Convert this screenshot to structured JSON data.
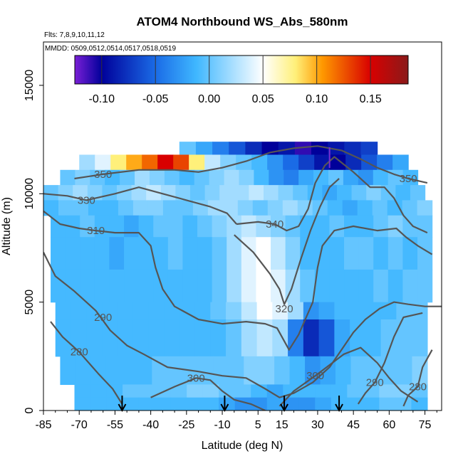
{
  "chart_data": {
    "type": "heatmap",
    "title": "ATOM4 Northbound WS_Abs_580nm",
    "subtitle_lines": [
      "Flts: 7,8,9,10,11,12",
      "MMDD: 0509,0512,0514,0517,0518,0519"
    ],
    "xlabel": "Latitude (deg N)",
    "ylabel": "Altitude (m)",
    "xlim": [
      -85,
      82
    ],
    "ylim": [
      0,
      17000
    ],
    "x_ticks": [
      -85,
      -70,
      -55,
      -40,
      -25,
      -10,
      5,
      15,
      30,
      45,
      60,
      75
    ],
    "y_ticks": [
      0,
      5000,
      10000,
      15000
    ],
    "colorbar": {
      "range": [
        -0.125,
        0.185
      ],
      "ticks": [
        -0.1,
        -0.05,
        0.0,
        0.05,
        0.1,
        0.15
      ],
      "tick_labels": [
        "-0.10",
        "-0.05",
        "0.00",
        "0.05",
        "0.10",
        "0.15"
      ],
      "palette": [
        "#7a1fd6",
        "#00009a",
        "#1a6be6",
        "#3fb7ff",
        "#ffffff",
        "#fff07a",
        "#ff9900",
        "#d80000",
        "#8a1a1a"
      ]
    },
    "contour_labels": [
      {
        "label": "350",
        "x": -60,
        "y": 10900
      },
      {
        "label": "330",
        "x": -67,
        "y": 9700
      },
      {
        "label": "310",
        "x": -63,
        "y": 8300
      },
      {
        "label": "340",
        "x": 12,
        "y": 8600
      },
      {
        "label": "320",
        "x": 16,
        "y": 4700
      },
      {
        "label": "290",
        "x": -60,
        "y": 4300
      },
      {
        "label": "280",
        "x": -70,
        "y": 2700
      },
      {
        "label": "300",
        "x": -21,
        "y": 1500
      },
      {
        "label": "300",
        "x": 29,
        "y": 1600
      },
      {
        "label": "290",
        "x": 54,
        "y": 1300
      },
      {
        "label": "280",
        "x": 72,
        "y": 1100
      },
      {
        "label": "350",
        "x": 68,
        "y": 10700
      }
    ],
    "profile_markers_lat": [
      -52,
      -9,
      16,
      39
    ],
    "profile_marker_top_lat": 35,
    "rows": [
      {
        "y0": 11800,
        "y1": 12400,
        "cells": [
          [
            -28,
            55,
            [
              0.0,
              -0.02,
              -0.04,
              -0.06,
              -0.08,
              -0.1,
              -0.09,
              -0.11,
              -0.1,
              -0.09,
              -0.08,
              -0.07
            ]
          ]
        ]
      },
      {
        "y0": 11100,
        "y1": 11800,
        "cells": [
          [
            -70,
            68,
            [
              0.02,
              0.04,
              0.08,
              0.1,
              0.12,
              0.15,
              0.13,
              0.08,
              0.03,
              0.01,
              0.0,
              -0.01,
              -0.03,
              -0.05,
              -0.07,
              -0.09,
              -0.1,
              -0.08,
              -0.06,
              -0.04,
              -0.02
            ]
          ]
        ]
      },
      {
        "y0": 10400,
        "y1": 11100,
        "cells": [
          [
            -78,
            72,
            [
              0.0,
              0.01,
              0.0,
              -0.01,
              0.0,
              0.02,
              0.01,
              0.0,
              -0.01,
              0.0,
              0.01,
              0.02,
              0.01,
              -0.01,
              -0.03,
              -0.04,
              -0.02,
              -0.01,
              0.0,
              -0.02,
              -0.03,
              -0.01,
              0.0,
              -0.01
            ]
          ]
        ]
      },
      {
        "y0": 9700,
        "y1": 10400,
        "cells": [
          [
            -85,
            75,
            [
              0.0,
              0.01,
              0.02,
              0.01,
              0.0,
              0.01,
              0.02,
              0.03,
              0.02,
              0.01,
              0.0,
              0.01,
              0.02,
              0.02,
              0.03,
              0.02,
              0.01,
              0.0,
              -0.01,
              -0.02,
              -0.01,
              0.0,
              0.01,
              0.0,
              -0.01,
              0.0
            ]
          ]
        ]
      },
      {
        "y0": 9000,
        "y1": 9700,
        "cells": [
          [
            -85,
            78,
            [
              -0.01,
              0.0,
              0.0,
              -0.01,
              -0.01,
              0.0,
              0.01,
              0.01,
              0.0,
              0.0,
              0.01,
              0.02,
              0.02,
              0.01,
              0.0,
              0.01,
              0.02,
              0.01,
              0.0,
              -0.01,
              -0.02,
              -0.01,
              0.0,
              -0.01,
              0.0,
              0.01
            ]
          ]
        ]
      },
      {
        "y0": 8000,
        "y1": 9000,
        "cells": [
          [
            -82,
            78,
            [
              -0.01,
              -0.01,
              0.0,
              -0.01,
              -0.01,
              -0.02,
              -0.01,
              0.0,
              0.0,
              -0.01,
              0.0,
              0.01,
              0.02,
              0.03,
              0.02,
              0.01,
              0.0,
              -0.01,
              -0.01,
              0.0,
              -0.01,
              -0.01,
              0.0,
              0.01,
              0.0,
              0.0
            ]
          ]
        ]
      },
      {
        "y0": 6500,
        "y1": 8000,
        "cells": [
          [
            -82,
            78,
            [
              -0.01,
              -0.01,
              -0.01,
              -0.01,
              -0.02,
              -0.01,
              -0.01,
              -0.01,
              0.0,
              -0.01,
              -0.01,
              0.0,
              0.02,
              0.04,
              0.05,
              0.03,
              0.01,
              -0.01,
              -0.01,
              -0.01,
              0.0,
              0.0,
              -0.01,
              0.0,
              -0.01,
              0.0
            ]
          ]
        ]
      },
      {
        "y0": 5000,
        "y1": 6500,
        "cells": [
          [
            -82,
            78,
            [
              -0.01,
              -0.01,
              -0.01,
              -0.01,
              -0.01,
              -0.01,
              -0.01,
              -0.01,
              -0.01,
              -0.01,
              -0.01,
              0.0,
              0.02,
              0.04,
              0.05,
              0.04,
              0.02,
              0.0,
              -0.01,
              -0.01,
              -0.01,
              -0.01,
              0.0,
              -0.01,
              0.0,
              0.0
            ]
          ]
        ]
      },
      {
        "y0": 4200,
        "y1": 5000,
        "cells": [
          [
            -80,
            76,
            [
              -0.01,
              -0.01,
              -0.01,
              -0.01,
              -0.01,
              -0.01,
              -0.01,
              -0.01,
              -0.01,
              -0.01,
              0.0,
              0.01,
              0.03,
              0.05,
              0.04,
              0.02,
              -0.03,
              -0.02,
              -0.01,
              -0.01,
              -0.01,
              -0.01,
              0.0,
              0.0
            ]
          ]
        ]
      },
      {
        "y0": 2500,
        "y1": 4200,
        "cells": [
          [
            -80,
            76,
            [
              -0.01,
              -0.01,
              -0.01,
              -0.01,
              -0.01,
              -0.01,
              -0.01,
              -0.01,
              -0.01,
              -0.01,
              -0.01,
              0.0,
              0.02,
              0.03,
              0.02,
              -0.04,
              -0.08,
              -0.06,
              -0.02,
              -0.01,
              -0.01,
              0.0,
              0.0,
              0.0
            ]
          ]
        ]
      },
      {
        "y0": 1200,
        "y1": 2500,
        "cells": [
          [
            -78,
            76,
            [
              -0.01,
              -0.01,
              -0.01,
              -0.01,
              -0.01,
              -0.01,
              0.0,
              0.0,
              0.0,
              0.0,
              0.0,
              0.0,
              0.01,
              0.01,
              0.0,
              -0.01,
              -0.03,
              -0.02,
              -0.01,
              0.0,
              0.0,
              0.0,
              0.0,
              0.01
            ]
          ]
        ]
      },
      {
        "y0": 600,
        "y1": 1200,
        "cells": [
          [
            -72,
            76,
            [
              -0.01,
              -0.01,
              -0.01,
              0.0,
              0.0,
              0.0,
              0.0,
              0.01,
              0.01,
              0.0,
              0.0,
              -0.01,
              -0.02,
              -0.01,
              -0.01,
              -0.01,
              -0.01,
              0.0,
              0.0,
              0.01,
              0.01,
              0.0
            ]
          ]
        ]
      },
      {
        "y0": 0,
        "y1": 600,
        "cells": [
          [
            -72,
            76,
            [
              -0.01,
              -0.01,
              -0.01,
              -0.01,
              -0.01,
              -0.01,
              -0.01,
              -0.01,
              -0.01,
              -0.02,
              -0.03,
              -0.03,
              -0.02,
              -0.03,
              -0.03,
              -0.02,
              -0.01,
              -0.01,
              -0.01,
              0.0,
              0.0,
              -0.01
            ]
          ]
        ]
      }
    ],
    "contours": [
      {
        "level": 350,
        "points": [
          [
            -72,
            10700
          ],
          [
            -60,
            10900
          ],
          [
            -45,
            11100
          ],
          [
            -30,
            11100
          ],
          [
            -20,
            11000
          ],
          [
            -10,
            11200
          ],
          [
            0,
            11500
          ],
          [
            10,
            11900
          ],
          [
            20,
            12100
          ],
          [
            30,
            12200
          ],
          [
            40,
            12000
          ],
          [
            48,
            11600
          ],
          [
            55,
            11200
          ],
          [
            62,
            10900
          ],
          [
            68,
            10700
          ],
          [
            76,
            10500
          ]
        ]
      },
      {
        "level": 330,
        "points": [
          [
            -85,
            10000
          ],
          [
            -75,
            9900
          ],
          [
            -67,
            9700
          ],
          [
            -55,
            10000
          ],
          [
            -45,
            10300
          ],
          [
            -35,
            10000
          ],
          [
            -25,
            9700
          ],
          [
            -15,
            9400
          ],
          [
            -8,
            9100
          ],
          [
            -4,
            8600
          ]
        ]
      },
      {
        "level": 340,
        "points": [
          [
            -4,
            8600
          ],
          [
            5,
            8700
          ],
          [
            12,
            8600
          ],
          [
            17,
            8300
          ],
          [
            22,
            8500
          ],
          [
            26,
            9300
          ],
          [
            29,
            10500
          ],
          [
            33,
            11300
          ],
          [
            37,
            11700
          ],
          [
            45,
            11000
          ],
          [
            52,
            10300
          ],
          [
            58,
            10300
          ],
          [
            62,
            9800
          ],
          [
            66,
            9000
          ],
          [
            70,
            8500
          ],
          [
            76,
            8200
          ]
        ]
      },
      {
        "level": 310,
        "points": [
          [
            -85,
            9200
          ],
          [
            -78,
            8600
          ],
          [
            -70,
            8400
          ],
          [
            -63,
            8300
          ],
          [
            -55,
            8200
          ],
          [
            -45,
            8200
          ],
          [
            -40,
            7600
          ],
          [
            -38,
            6600
          ],
          [
            -35,
            5600
          ],
          [
            -30,
            4800
          ],
          [
            -20,
            4200
          ],
          [
            -10,
            4000
          ],
          [
            0,
            4100
          ],
          [
            8,
            4000
          ],
          [
            13,
            3800
          ],
          [
            18,
            2800
          ],
          [
            22,
            3500
          ],
          [
            28,
            5000
          ],
          [
            30,
            6600
          ],
          [
            32,
            7600
          ],
          [
            37,
            8300
          ],
          [
            45,
            8500
          ],
          [
            55,
            8300
          ],
          [
            63,
            8400
          ],
          [
            67,
            8000
          ],
          [
            72,
            7600
          ],
          [
            78,
            7200
          ]
        ]
      },
      {
        "level": 320,
        "points": [
          [
            -5,
            8100
          ],
          [
            3,
            7300
          ],
          [
            10,
            6300
          ],
          [
            14,
            5600
          ],
          [
            16,
            4900
          ],
          [
            19,
            5600
          ],
          [
            23,
            7000
          ],
          [
            27,
            8300
          ],
          [
            31,
            9400
          ],
          [
            35,
            10300
          ],
          [
            39,
            10700
          ]
        ]
      },
      {
        "level": 290,
        "points": [
          [
            -85,
            7300
          ],
          [
            -80,
            6200
          ],
          [
            -72,
            5500
          ],
          [
            -63,
            4600
          ],
          [
            -57,
            3700
          ],
          [
            -50,
            3000
          ],
          [
            -43,
            2600
          ],
          [
            -33,
            2000
          ],
          [
            -20,
            1800
          ],
          [
            -10,
            1600
          ],
          [
            0,
            1500
          ],
          [
            8,
            1000
          ],
          [
            14,
            600
          ],
          [
            20,
            800
          ],
          [
            28,
            1300
          ],
          [
            35,
            2000
          ],
          [
            40,
            2800
          ],
          [
            45,
            3600
          ],
          [
            50,
            4200
          ],
          [
            56,
            4700
          ],
          [
            62,
            5000
          ],
          [
            68,
            4900
          ],
          [
            75,
            4800
          ],
          [
            82,
            4800
          ]
        ]
      },
      {
        "level": 280,
        "points": [
          [
            -82,
            4100
          ],
          [
            -77,
            3400
          ],
          [
            -70,
            2700
          ],
          [
            -62,
            1700
          ],
          [
            -56,
            1000
          ],
          [
            -52,
            300
          ]
        ]
      },
      {
        "level": 300,
        "points": [
          [
            -40,
            600
          ],
          [
            -30,
            1100
          ],
          [
            -21,
            1500
          ],
          [
            -15,
            1400
          ],
          [
            -10,
            900
          ],
          [
            -5,
            500
          ],
          [
            2,
            300
          ],
          [
            8,
            0
          ]
        ]
      },
      {
        "level": 300,
        "points": [
          [
            14,
            200
          ],
          [
            20,
            900
          ],
          [
            29,
            1600
          ],
          [
            35,
            2100
          ],
          [
            41,
            2600
          ],
          [
            48,
            2900
          ],
          [
            55,
            2200
          ],
          [
            60,
            1500
          ],
          [
            65,
            900
          ],
          [
            72,
            400
          ]
        ]
      },
      {
        "level": 290,
        "points": [
          [
            47,
            300
          ],
          [
            50,
            800
          ],
          [
            54,
            1300
          ],
          [
            58,
            2200
          ],
          [
            62,
            3400
          ],
          [
            66,
            4300
          ],
          [
            70,
            4400
          ],
          [
            74,
            4500
          ]
        ]
      },
      {
        "level": 280,
        "points": [
          [
            66,
            200
          ],
          [
            68,
            700
          ],
          [
            72,
            1100
          ],
          [
            74,
            2000
          ],
          [
            78,
            2800
          ]
        ]
      }
    ]
  }
}
